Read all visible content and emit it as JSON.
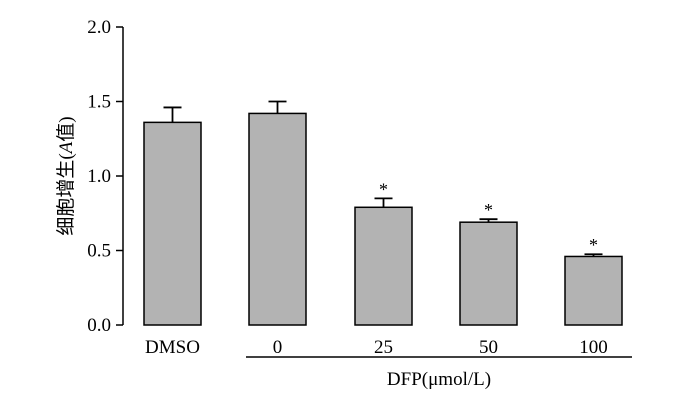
{
  "chart_data": {
    "type": "bar",
    "categories": [
      "DMSO",
      "0",
      "25",
      "50",
      "100"
    ],
    "values": [
      1.36,
      1.42,
      0.79,
      0.69,
      0.46
    ],
    "errors": [
      0.1,
      0.08,
      0.06,
      0.02,
      0.015
    ],
    "significance": [
      "",
      "",
      "*",
      "*",
      "*"
    ],
    "ylabel_cjk": "细胞增生",
    "ylabel_paren_open": "(",
    "ylabel_italic": "A",
    "ylabel_cjk_value": "值",
    "ylabel_paren_close": ")",
    "yticks": [
      "0.0",
      "0.5",
      "1.0",
      "1.5",
      "2.0"
    ],
    "ylim": [
      0,
      2.0
    ],
    "xgroup_label": "DFP(μmol/L)",
    "bar_color": "#b3b3b3"
  }
}
